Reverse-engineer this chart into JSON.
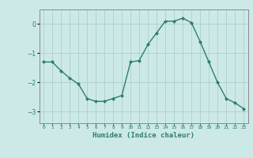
{
  "xlabel": "Humidex (Indice chaleur)",
  "ylabel": "",
  "x": [
    0,
    1,
    2,
    3,
    4,
    5,
    6,
    7,
    8,
    9,
    10,
    11,
    12,
    13,
    14,
    15,
    16,
    17,
    18,
    19,
    20,
    21,
    22,
    23
  ],
  "y": [
    -1.3,
    -1.3,
    -1.6,
    -1.85,
    -2.05,
    -2.55,
    -2.65,
    -2.65,
    -2.55,
    -2.45,
    -1.3,
    -1.25,
    -0.7,
    -0.3,
    0.1,
    0.1,
    0.2,
    0.05,
    -0.6,
    -1.3,
    -2.0,
    -2.55,
    -2.7,
    -2.9
  ],
  "line_color": "#2e7d6e",
  "marker": "D",
  "marker_size": 2.0,
  "background_color": "#cce9e8",
  "grid_color": "#aacfce",
  "yticks": [
    -3,
    -2,
    -1,
    0
  ],
  "ylim": [
    -3.4,
    0.5
  ],
  "xlim": [
    -0.5,
    23.5
  ],
  "xtick_labels": [
    "0",
    "1",
    "2",
    "3",
    "4",
    "5",
    "6",
    "7",
    "8",
    "9",
    "10",
    "11",
    "12",
    "13",
    "14",
    "15",
    "16",
    "17",
    "18",
    "19",
    "20",
    "21",
    "22",
    "23"
  ]
}
